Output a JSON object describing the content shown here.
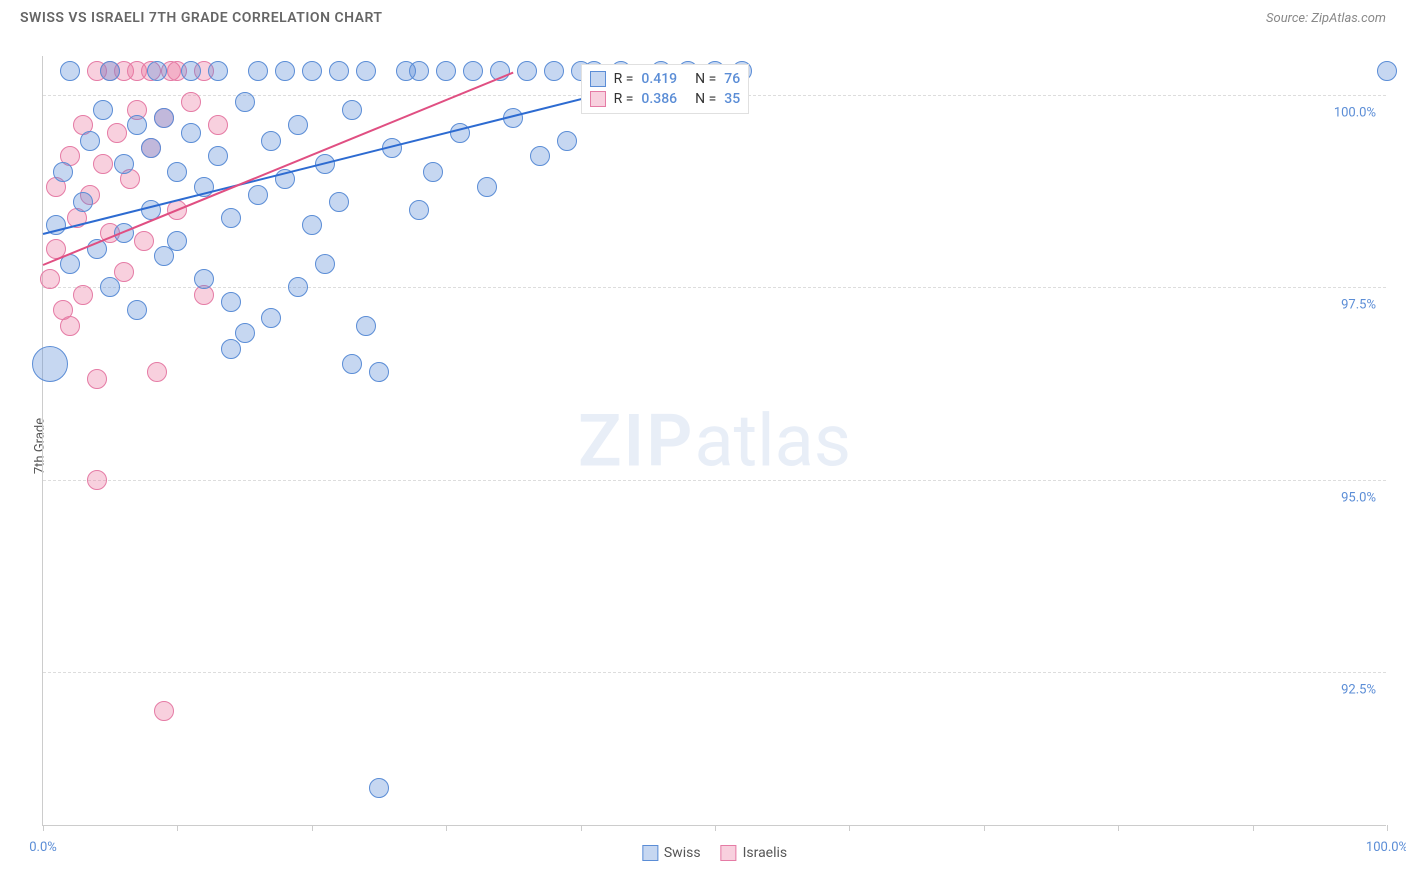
{
  "title": "SWISS VS ISRAELI 7TH GRADE CORRELATION CHART",
  "source": "Source: ZipAtlas.com",
  "y_axis_title": "7th Grade",
  "watermark": {
    "zip": "ZIP",
    "atlas": "atlas"
  },
  "chart": {
    "type": "scatter",
    "xlim": [
      0,
      100
    ],
    "ylim": [
      90.5,
      100.5
    ],
    "x_ticks": [
      0,
      10,
      20,
      30,
      40,
      50,
      60,
      70,
      80,
      90,
      100
    ],
    "x_tick_labels": {
      "0": "0.0%",
      "100": "100.0%"
    },
    "y_gridlines": [
      92.5,
      95.0,
      97.5,
      100.0
    ],
    "y_tick_labels": [
      "92.5%",
      "95.0%",
      "97.5%",
      "100.0%"
    ],
    "background_color": "#ffffff",
    "grid_color": "#dddddd",
    "axis_color": "#cccccc",
    "tick_label_color": "#5b8dd6",
    "series": {
      "swiss": {
        "label": "Swiss",
        "fill": "rgba(91,141,214,0.35)",
        "stroke": "#5b8dd6",
        "points": [
          {
            "x": 0.5,
            "y": 96.5,
            "r": 18
          },
          {
            "x": 1,
            "y": 98.3,
            "r": 10
          },
          {
            "x": 1.5,
            "y": 99.0,
            "r": 10
          },
          {
            "x": 2,
            "y": 97.8,
            "r": 10
          },
          {
            "x": 2,
            "y": 100.3,
            "r": 10
          },
          {
            "x": 3,
            "y": 98.6,
            "r": 10
          },
          {
            "x": 3.5,
            "y": 99.4,
            "r": 10
          },
          {
            "x": 4,
            "y": 98.0,
            "r": 10
          },
          {
            "x": 4.5,
            "y": 99.8,
            "r": 10
          },
          {
            "x": 5,
            "y": 97.5,
            "r": 10
          },
          {
            "x": 5,
            "y": 100.3,
            "r": 10
          },
          {
            "x": 6,
            "y": 99.1,
            "r": 10
          },
          {
            "x": 6,
            "y": 98.2,
            "r": 10
          },
          {
            "x": 7,
            "y": 99.6,
            "r": 10
          },
          {
            "x": 7,
            "y": 97.2,
            "r": 10
          },
          {
            "x": 8,
            "y": 99.3,
            "r": 10
          },
          {
            "x": 8,
            "y": 98.5,
            "r": 10
          },
          {
            "x": 8.5,
            "y": 100.3,
            "r": 10
          },
          {
            "x": 9,
            "y": 99.7,
            "r": 10
          },
          {
            "x": 9,
            "y": 97.9,
            "r": 10
          },
          {
            "x": 10,
            "y": 99.0,
            "r": 10
          },
          {
            "x": 10,
            "y": 98.1,
            "r": 10
          },
          {
            "x": 11,
            "y": 99.5,
            "r": 10
          },
          {
            "x": 11,
            "y": 100.3,
            "r": 10
          },
          {
            "x": 12,
            "y": 98.8,
            "r": 10
          },
          {
            "x": 12,
            "y": 97.6,
            "r": 10
          },
          {
            "x": 13,
            "y": 99.2,
            "r": 10
          },
          {
            "x": 13,
            "y": 100.3,
            "r": 10
          },
          {
            "x": 14,
            "y": 98.4,
            "r": 10
          },
          {
            "x": 14,
            "y": 96.7,
            "r": 10
          },
          {
            "x": 14,
            "y": 97.3,
            "r": 10
          },
          {
            "x": 15,
            "y": 99.9,
            "r": 10
          },
          {
            "x": 15,
            "y": 96.9,
            "r": 10
          },
          {
            "x": 16,
            "y": 98.7,
            "r": 10
          },
          {
            "x": 16,
            "y": 100.3,
            "r": 10
          },
          {
            "x": 17,
            "y": 99.4,
            "r": 10
          },
          {
            "x": 17,
            "y": 97.1,
            "r": 10
          },
          {
            "x": 18,
            "y": 98.9,
            "r": 10
          },
          {
            "x": 18,
            "y": 100.3,
            "r": 10
          },
          {
            "x": 19,
            "y": 99.6,
            "r": 10
          },
          {
            "x": 19,
            "y": 97.5,
            "r": 10
          },
          {
            "x": 20,
            "y": 98.3,
            "r": 10
          },
          {
            "x": 20,
            "y": 100.3,
            "r": 10
          },
          {
            "x": 21,
            "y": 99.1,
            "r": 10
          },
          {
            "x": 21,
            "y": 97.8,
            "r": 10
          },
          {
            "x": 22,
            "y": 98.6,
            "r": 10
          },
          {
            "x": 22,
            "y": 100.3,
            "r": 10
          },
          {
            "x": 23,
            "y": 96.5,
            "r": 10
          },
          {
            "x": 23,
            "y": 99.8,
            "r": 10
          },
          {
            "x": 24,
            "y": 97.0,
            "r": 10
          },
          {
            "x": 24,
            "y": 100.3,
            "r": 10
          },
          {
            "x": 25,
            "y": 96.4,
            "r": 10
          },
          {
            "x": 25,
            "y": 91.0,
            "r": 10
          },
          {
            "x": 26,
            "y": 99.3,
            "r": 10
          },
          {
            "x": 27,
            "y": 100.3,
            "r": 10
          },
          {
            "x": 28,
            "y": 98.5,
            "r": 10
          },
          {
            "x": 28,
            "y": 100.3,
            "r": 10
          },
          {
            "x": 29,
            "y": 99.0,
            "r": 10
          },
          {
            "x": 30,
            "y": 100.3,
            "r": 10
          },
          {
            "x": 31,
            "y": 99.5,
            "r": 10
          },
          {
            "x": 32,
            "y": 100.3,
            "r": 10
          },
          {
            "x": 33,
            "y": 98.8,
            "r": 10
          },
          {
            "x": 34,
            "y": 100.3,
            "r": 10
          },
          {
            "x": 35,
            "y": 99.7,
            "r": 10
          },
          {
            "x": 36,
            "y": 100.3,
            "r": 10
          },
          {
            "x": 37,
            "y": 99.2,
            "r": 10
          },
          {
            "x": 38,
            "y": 100.3,
            "r": 10
          },
          {
            "x": 39,
            "y": 99.4,
            "r": 10
          },
          {
            "x": 40,
            "y": 100.3,
            "r": 10
          },
          {
            "x": 41,
            "y": 100.3,
            "r": 10
          },
          {
            "x": 43,
            "y": 100.3,
            "r": 10
          },
          {
            "x": 46,
            "y": 100.3,
            "r": 10
          },
          {
            "x": 48,
            "y": 100.3,
            "r": 10
          },
          {
            "x": 50,
            "y": 100.3,
            "r": 10
          },
          {
            "x": 52,
            "y": 100.3,
            "r": 10
          },
          {
            "x": 100,
            "y": 100.3,
            "r": 10
          }
        ],
        "trend": {
          "x1": 0,
          "y1": 98.2,
          "x2": 48,
          "y2": 100.3,
          "color": "#2d6bd1",
          "width": 2
        },
        "stats": {
          "R": "0.419",
          "N": "76"
        }
      },
      "israelis": {
        "label": "Israelis",
        "fill": "rgba(235,120,160,0.35)",
        "stroke": "#e57ba5",
        "points": [
          {
            "x": 0.5,
            "y": 97.6,
            "r": 10
          },
          {
            "x": 1,
            "y": 98.0,
            "r": 10
          },
          {
            "x": 1,
            "y": 98.8,
            "r": 10
          },
          {
            "x": 1.5,
            "y": 97.2,
            "r": 10
          },
          {
            "x": 2,
            "y": 99.2,
            "r": 10
          },
          {
            "x": 2,
            "y": 97.0,
            "r": 10
          },
          {
            "x": 2.5,
            "y": 98.4,
            "r": 10
          },
          {
            "x": 3,
            "y": 99.6,
            "r": 10
          },
          {
            "x": 3,
            "y": 97.4,
            "r": 10
          },
          {
            "x": 3.5,
            "y": 98.7,
            "r": 10
          },
          {
            "x": 4,
            "y": 100.3,
            "r": 10
          },
          {
            "x": 4,
            "y": 96.3,
            "r": 10
          },
          {
            "x": 4,
            "y": 95.0,
            "r": 10
          },
          {
            "x": 4.5,
            "y": 99.1,
            "r": 10
          },
          {
            "x": 5,
            "y": 98.2,
            "r": 10
          },
          {
            "x": 5,
            "y": 100.3,
            "r": 10
          },
          {
            "x": 5.5,
            "y": 99.5,
            "r": 10
          },
          {
            "x": 6,
            "y": 97.7,
            "r": 10
          },
          {
            "x": 6,
            "y": 100.3,
            "r": 10
          },
          {
            "x": 6.5,
            "y": 98.9,
            "r": 10
          },
          {
            "x": 7,
            "y": 99.8,
            "r": 10
          },
          {
            "x": 7,
            "y": 100.3,
            "r": 10
          },
          {
            "x": 7.5,
            "y": 98.1,
            "r": 10
          },
          {
            "x": 8,
            "y": 99.3,
            "r": 10
          },
          {
            "x": 8,
            "y": 100.3,
            "r": 10
          },
          {
            "x": 8.5,
            "y": 96.4,
            "r": 10
          },
          {
            "x": 9,
            "y": 99.7,
            "r": 10
          },
          {
            "x": 9,
            "y": 92.0,
            "r": 10
          },
          {
            "x": 9.5,
            "y": 100.3,
            "r": 10
          },
          {
            "x": 10,
            "y": 98.5,
            "r": 10
          },
          {
            "x": 10,
            "y": 100.3,
            "r": 10
          },
          {
            "x": 11,
            "y": 99.9,
            "r": 10
          },
          {
            "x": 12,
            "y": 97.4,
            "r": 10
          },
          {
            "x": 12,
            "y": 100.3,
            "r": 10
          },
          {
            "x": 13,
            "y": 99.6,
            "r": 10
          }
        ],
        "trend": {
          "x1": 0,
          "y1": 97.8,
          "x2": 35,
          "y2": 100.3,
          "color": "#e04f82",
          "width": 2
        },
        "stats": {
          "R": "0.386",
          "N": "35"
        }
      }
    }
  },
  "stats_box": {
    "left_pct": 40,
    "top_pct": 1
  },
  "legend": {
    "swiss_swatch_fill": "rgba(91,141,214,0.35)",
    "swiss_swatch_stroke": "#5b8dd6",
    "israelis_swatch_fill": "rgba(235,120,160,0.35)",
    "israelis_swatch_stroke": "#e57ba5"
  }
}
